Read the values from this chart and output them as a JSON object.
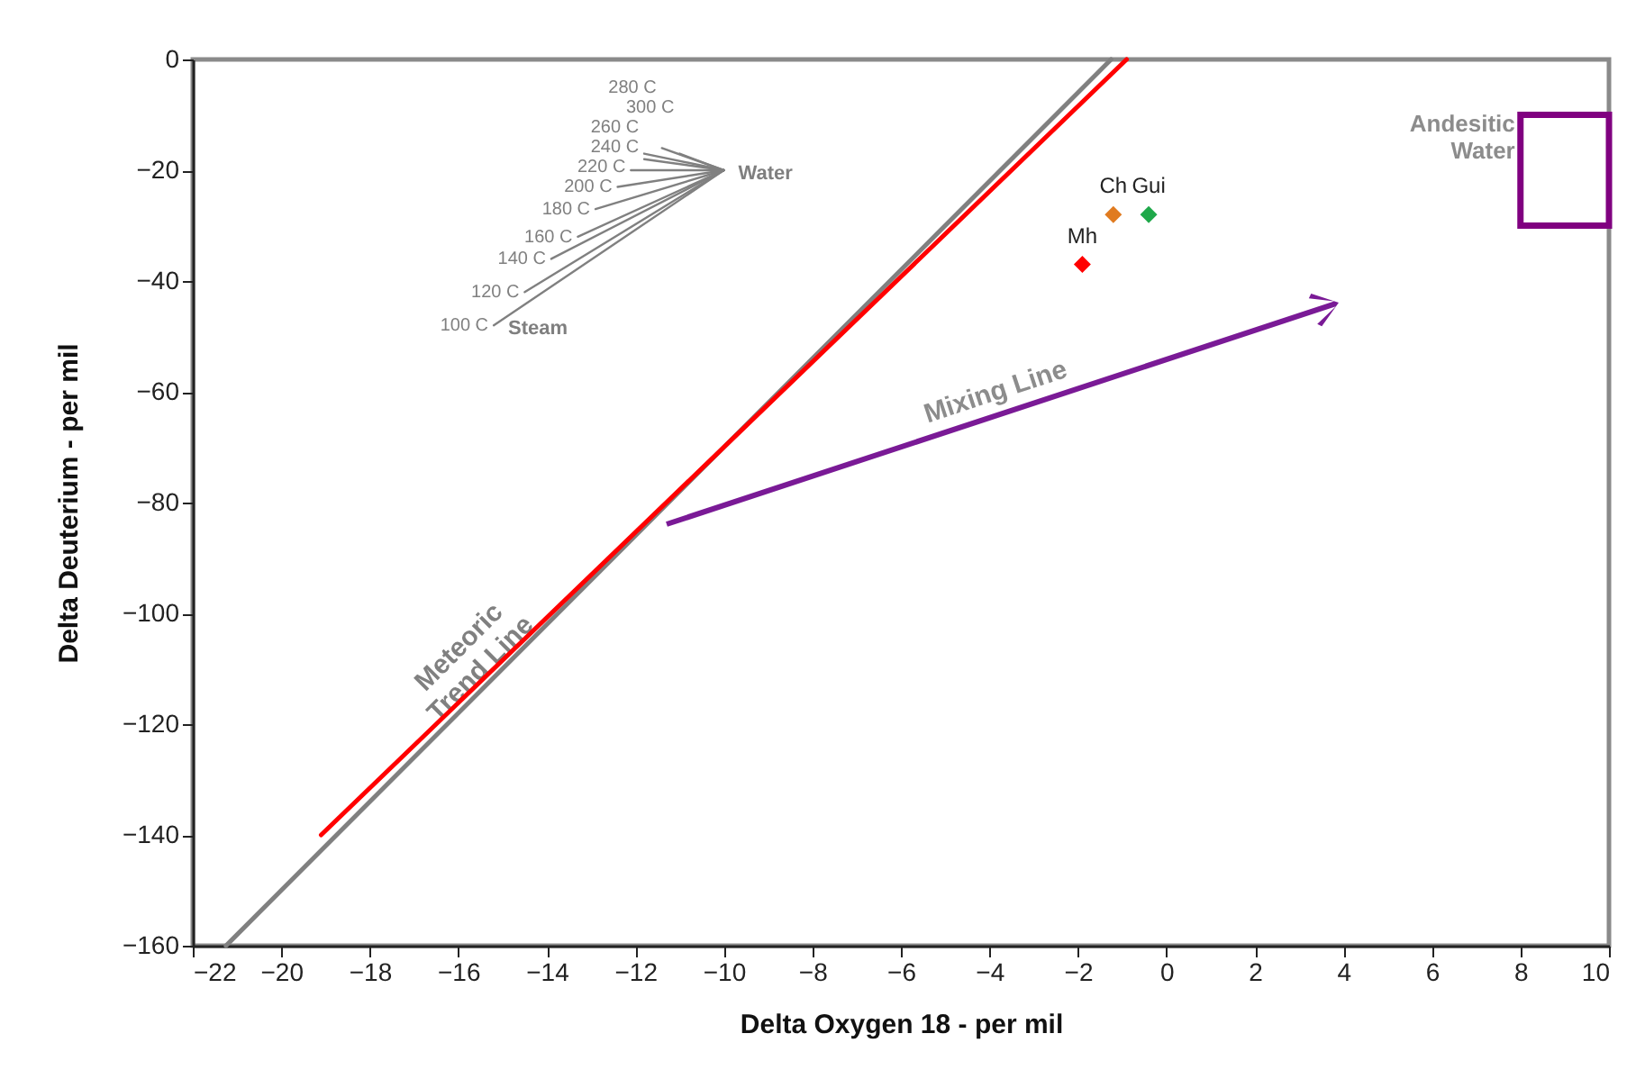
{
  "chart_data": {
    "type": "line",
    "xlabel": "Delta Oxygen 18 - per mil",
    "ylabel": "Delta Deuterium - per mil",
    "xlim": [
      -22,
      10
    ],
    "ylim": [
      -160,
      0
    ],
    "xticks": [
      -22,
      -20,
      -18,
      -16,
      -14,
      -12,
      -10,
      -8,
      -6,
      -4,
      -2,
      0,
      2,
      4,
      6,
      8,
      10
    ],
    "yticks": [
      -160,
      -140,
      -120,
      -100,
      -80,
      -60,
      -40,
      -20,
      0
    ],
    "grid": false,
    "series": [
      {
        "name": "Meteoric Trend Line",
        "color": "#808080",
        "x": [
          -21.25,
          -1.25
        ],
        "values": [
          -160,
          0
        ]
      },
      {
        "color": "#ff0000",
        "x": [
          -19.1,
          -0.9
        ],
        "values": [
          -140,
          0
        ]
      },
      {
        "name": "100 C",
        "color": "#808080",
        "x": [
          -15.2,
          -10
        ],
        "values": [
          -48,
          -20
        ]
      },
      {
        "name": "120 C",
        "color": "#808080",
        "x": [
          -14.5,
          -10
        ],
        "values": [
          -42,
          -20
        ]
      },
      {
        "name": "140 C",
        "color": "#808080",
        "x": [
          -13.9,
          -10
        ],
        "values": [
          -36,
          -20
        ]
      },
      {
        "name": "160 C",
        "color": "#808080",
        "x": [
          -13.3,
          -10
        ],
        "values": [
          -32,
          -20
        ]
      },
      {
        "name": "180 C",
        "color": "#808080",
        "x": [
          -12.9,
          -10
        ],
        "values": [
          -27,
          -20
        ]
      },
      {
        "name": "200 C",
        "color": "#808080",
        "x": [
          -12.4,
          -10
        ],
        "values": [
          -23,
          -20
        ]
      },
      {
        "name": "220 C",
        "color": "#808080",
        "x": [
          -12.1,
          -10
        ],
        "values": [
          -20,
          -20
        ]
      },
      {
        "name": "240 C",
        "color": "#808080",
        "x": [
          -11.8,
          -10
        ],
        "values": [
          -18,
          -20
        ]
      },
      {
        "name": "260 C",
        "color": "#808080",
        "x": [
          -11.8,
          -10
        ],
        "values": [
          -17,
          -20
        ]
      },
      {
        "name": "280 C",
        "color": "#808080",
        "x": [
          -11.4,
          -10
        ],
        "values": [
          -16,
          -20
        ]
      },
      {
        "name": "300 C",
        "color": "#808080",
        "x": [
          -11,
          -10
        ],
        "values": [
          -17,
          -20
        ]
      },
      {
        "type": "scatter",
        "name": "Mh",
        "color": "#ff0000",
        "marker": "diamond",
        "x": [
          -1.9
        ],
        "values": [
          -37
        ]
      },
      {
        "type": "scatter",
        "name": "Ch",
        "color": "#e07b20",
        "marker": "diamond",
        "x": [
          -1.2
        ],
        "values": [
          -28
        ]
      },
      {
        "type": "scatter",
        "name": "Gui",
        "color": "#1fa84a",
        "marker": "diamond",
        "x": [
          -0.4
        ],
        "values": [
          -28
        ]
      }
    ],
    "annotations": [
      "Mixing Line",
      "Andesitic Water",
      {
        "text": "Water",
        "x": -10,
        "y": -20
      },
      {
        "text": "Steam",
        "x": -15.2,
        "y": -48
      }
    ]
  }
}
